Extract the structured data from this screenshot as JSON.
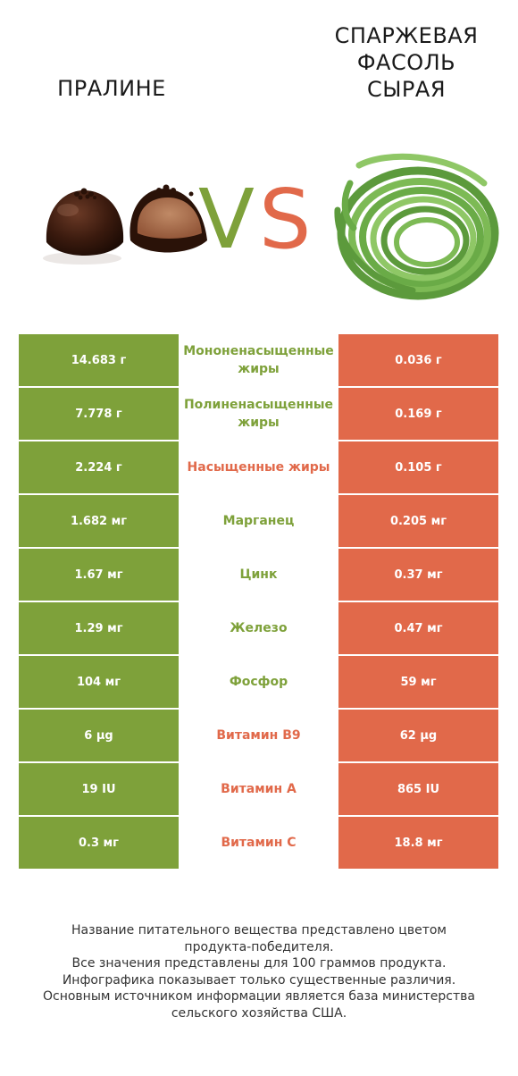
{
  "header": {
    "left_title": "ПРАЛИНЕ",
    "right_title": [
      "СПАРЖЕВАЯ",
      "ФАСОЛЬ",
      "СЫРАЯ"
    ],
    "vs_v": "V",
    "vs_s": "S"
  },
  "colors": {
    "left_color": "#7ea13a",
    "right_color": "#e1694a"
  },
  "chart_data": {
    "type": "table",
    "columns": [
      "ПРАЛИНЕ",
      "",
      "СПАРЖЕВАЯ ФАСОЛЬ СЫРАЯ"
    ],
    "rows": [
      {
        "nutrient": "Мононенасыщенные жиры",
        "left": "14.683 г",
        "right": "0.036 г",
        "winner": "left"
      },
      {
        "nutrient": "Полиненасыщенные жиры",
        "left": "7.778 г",
        "right": "0.169 г",
        "winner": "left"
      },
      {
        "nutrient": "Насыщенные жиры",
        "left": "2.224 г",
        "right": "0.105 г",
        "winner": "right"
      },
      {
        "nutrient": "Марганец",
        "left": "1.682 мг",
        "right": "0.205 мг",
        "winner": "left"
      },
      {
        "nutrient": "Цинк",
        "left": "1.67 мг",
        "right": "0.37 мг",
        "winner": "left"
      },
      {
        "nutrient": "Железо",
        "left": "1.29 мг",
        "right": "0.47 мг",
        "winner": "left"
      },
      {
        "nutrient": "Фосфор",
        "left": "104 мг",
        "right": "59 мг",
        "winner": "left"
      },
      {
        "nutrient": "Витамин B9",
        "left": "6 µg",
        "right": "62 µg",
        "winner": "right"
      },
      {
        "nutrient": "Витамин A",
        "left": "19 IU",
        "right": "865 IU",
        "winner": "right"
      },
      {
        "nutrient": "Витамин C",
        "left": "0.3 мг",
        "right": "18.8 мг",
        "winner": "right"
      }
    ]
  },
  "footnote": [
    "Название питательного вещества представлено цветом",
    "продукта-победителя.",
    "Все значения представлены для 100 граммов продукта.",
    "Инфографика показывает только существенные различия.",
    "Основным источником информации является база министерства",
    "сельского хозяйства США."
  ]
}
